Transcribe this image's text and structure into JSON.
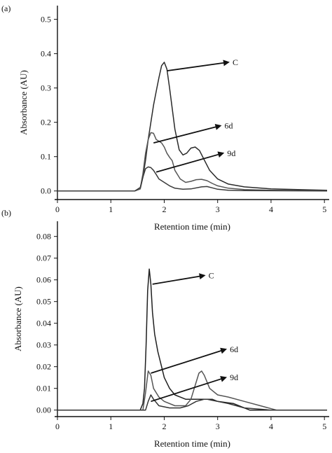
{
  "chart_data": [
    {
      "type": "line",
      "panel_label": "(a)",
      "xlabel": "Retention time (min)",
      "ylabel": "Absorbance (AU)",
      "xlim": [
        0,
        5.05
      ],
      "ylim": [
        -0.025,
        0.54
      ],
      "x_ticks": [
        0,
        1,
        2,
        3,
        4,
        5
      ],
      "y_ticks": [
        0.0,
        0.1,
        0.2,
        0.3,
        0.4,
        0.5
      ],
      "y_tick_labels": [
        "0.0",
        "0.1",
        "0.2",
        "0.3",
        "0.4",
        "0.5"
      ],
      "grid": false,
      "series": [
        {
          "name": "C",
          "color": "#2a2a2a",
          "points": [
            [
              0,
              0
            ],
            [
              1.45,
              0.0
            ],
            [
              1.55,
              0.006
            ],
            [
              1.6,
              0.04
            ],
            [
              1.65,
              0.09
            ],
            [
              1.7,
              0.15
            ],
            [
              1.75,
              0.2
            ],
            [
              1.8,
              0.25
            ],
            [
              1.85,
              0.29
            ],
            [
              1.9,
              0.33
            ],
            [
              1.95,
              0.365
            ],
            [
              2.0,
              0.375
            ],
            [
              2.05,
              0.355
            ],
            [
              2.1,
              0.3
            ],
            [
              2.15,
              0.24
            ],
            [
              2.2,
              0.18
            ],
            [
              2.28,
              0.12
            ],
            [
              2.35,
              0.105
            ],
            [
              2.42,
              0.11
            ],
            [
              2.5,
              0.125
            ],
            [
              2.58,
              0.128
            ],
            [
              2.66,
              0.118
            ],
            [
              2.75,
              0.09
            ],
            [
              2.85,
              0.06
            ],
            [
              3.0,
              0.035
            ],
            [
              3.2,
              0.02
            ],
            [
              3.5,
              0.012
            ],
            [
              4.0,
              0.006
            ],
            [
              4.5,
              0.004
            ],
            [
              5.05,
              0.002
            ]
          ]
        },
        {
          "name": "6d",
          "color": "#555555",
          "points": [
            [
              0,
              0
            ],
            [
              1.45,
              0.0
            ],
            [
              1.55,
              0.006
            ],
            [
              1.6,
              0.05
            ],
            [
              1.65,
              0.11
            ],
            [
              1.7,
              0.15
            ],
            [
              1.75,
              0.17
            ],
            [
              1.8,
              0.168
            ],
            [
              1.85,
              0.15
            ],
            [
              1.9,
              0.145
            ],
            [
              1.95,
              0.14
            ],
            [
              2.0,
              0.128
            ],
            [
              2.05,
              0.11
            ],
            [
              2.1,
              0.098
            ],
            [
              2.15,
              0.088
            ],
            [
              2.2,
              0.06
            ],
            [
              2.3,
              0.035
            ],
            [
              2.4,
              0.025
            ],
            [
              2.5,
              0.028
            ],
            [
              2.6,
              0.033
            ],
            [
              2.7,
              0.034
            ],
            [
              2.8,
              0.03
            ],
            [
              2.9,
              0.022
            ],
            [
              3.0,
              0.015
            ],
            [
              3.2,
              0.008
            ],
            [
              3.5,
              0.004
            ],
            [
              4.0,
              0.002
            ],
            [
              5.05,
              0.001
            ]
          ]
        },
        {
          "name": "9d",
          "color": "#3a3a3a",
          "points": [
            [
              0,
              0
            ],
            [
              1.45,
              0.0
            ],
            [
              1.55,
              0.01
            ],
            [
              1.6,
              0.04
            ],
            [
              1.65,
              0.065
            ],
            [
              1.7,
              0.07
            ],
            [
              1.75,
              0.068
            ],
            [
              1.8,
              0.06
            ],
            [
              1.85,
              0.048
            ],
            [
              1.9,
              0.035
            ],
            [
              2.0,
              0.025
            ],
            [
              2.1,
              0.015
            ],
            [
              2.2,
              0.008
            ],
            [
              2.35,
              0.005
            ],
            [
              2.5,
              0.006
            ],
            [
              2.7,
              0.012
            ],
            [
              2.8,
              0.013
            ],
            [
              2.9,
              0.009
            ],
            [
              3.0,
              0.005
            ],
            [
              3.2,
              0.002
            ],
            [
              3.5,
              0.001
            ],
            [
              5.05,
              0.0
            ]
          ]
        }
      ],
      "annotations": [
        {
          "text": "C",
          "from": [
            2.05,
            0.35
          ],
          "to": [
            3.2,
            0.375
          ]
        },
        {
          "text": "6d",
          "from": [
            1.8,
            0.14
          ],
          "to": [
            3.05,
            0.19
          ]
        },
        {
          "text": "9d",
          "from": [
            1.85,
            0.055
          ],
          "to": [
            3.1,
            0.11
          ]
        }
      ]
    },
    {
      "type": "line",
      "panel_label": "(b)",
      "xlabel": "Retention time (min)",
      "ylabel": "Absorbance (AU)",
      "xlim": [
        0,
        5.05
      ],
      "ylim": [
        -0.003,
        0.087
      ],
      "x_ticks": [
        0,
        1,
        2,
        3,
        4,
        5
      ],
      "y_ticks": [
        0.0,
        0.01,
        0.02,
        0.03,
        0.04,
        0.05,
        0.06,
        0.07,
        0.08
      ],
      "y_tick_labels": [
        "0.00",
        "0.01",
        "0.02",
        "0.03",
        "0.04",
        "0.05",
        "0.06",
        "0.07",
        "0.08"
      ],
      "grid": false,
      "series": [
        {
          "name": "C",
          "color": "#1f1f1f",
          "points": [
            [
              0,
              0
            ],
            [
              1.55,
              0.0
            ],
            [
              1.6,
              0.003
            ],
            [
              1.63,
              0.01
            ],
            [
              1.66,
              0.03
            ],
            [
              1.69,
              0.055
            ],
            [
              1.72,
              0.065
            ],
            [
              1.75,
              0.058
            ],
            [
              1.78,
              0.045
            ],
            [
              1.82,
              0.035
            ],
            [
              1.88,
              0.027
            ],
            [
              1.95,
              0.02
            ],
            [
              2.0,
              0.015
            ],
            [
              2.1,
              0.01
            ],
            [
              2.2,
              0.007
            ],
            [
              2.3,
              0.006
            ],
            [
              2.4,
              0.005
            ],
            [
              2.5,
              0.005
            ],
            [
              2.6,
              0.005
            ],
            [
              2.7,
              0.005
            ],
            [
              2.8,
              0.005
            ],
            [
              3.0,
              0.004
            ],
            [
              3.3,
              0.003
            ],
            [
              3.6,
              0.0
            ],
            [
              4.0,
              0.0
            ],
            [
              5.05,
              0.0
            ]
          ]
        },
        {
          "name": "6d",
          "color": "#555555",
          "points": [
            [
              0,
              0
            ],
            [
              1.6,
              0.0
            ],
            [
              1.65,
              0.008
            ],
            [
              1.7,
              0.018
            ],
            [
              1.75,
              0.016
            ],
            [
              1.8,
              0.01
            ],
            [
              1.9,
              0.006
            ],
            [
              2.0,
              0.004
            ],
            [
              2.2,
              0.002
            ],
            [
              2.4,
              0.002
            ],
            [
              2.5,
              0.005
            ],
            [
              2.6,
              0.013
            ],
            [
              2.65,
              0.017
            ],
            [
              2.7,
              0.018
            ],
            [
              2.75,
              0.016
            ],
            [
              2.85,
              0.01
            ],
            [
              3.0,
              0.007
            ],
            [
              3.2,
              0.006
            ],
            [
              3.5,
              0.004
            ],
            [
              3.8,
              0.002
            ],
            [
              4.1,
              0.0
            ],
            [
              5.05,
              0.0
            ]
          ]
        },
        {
          "name": "9d",
          "color": "#333333",
          "points": [
            [
              0,
              0
            ],
            [
              1.65,
              0.0
            ],
            [
              1.7,
              0.004
            ],
            [
              1.75,
              0.007
            ],
            [
              1.8,
              0.005
            ],
            [
              1.9,
              0.002
            ],
            [
              2.1,
              0.001
            ],
            [
              2.3,
              0.001
            ],
            [
              2.45,
              0.002
            ],
            [
              2.6,
              0.004
            ],
            [
              2.75,
              0.005
            ],
            [
              2.9,
              0.005
            ],
            [
              3.0,
              0.004
            ],
            [
              3.2,
              0.003
            ],
            [
              3.5,
              0.001
            ],
            [
              4.0,
              0.0
            ],
            [
              5.05,
              0.0
            ]
          ]
        }
      ],
      "annotations": [
        {
          "text": "C",
          "from": [
            1.78,
            0.058
          ],
          "to": [
            2.75,
            0.062
          ]
        },
        {
          "text": "6d",
          "from": [
            1.75,
            0.017
          ],
          "to": [
            3.15,
            0.028
          ]
        },
        {
          "text": "9d",
          "from": [
            1.75,
            0.004
          ],
          "to": [
            3.15,
            0.015
          ]
        }
      ]
    }
  ]
}
